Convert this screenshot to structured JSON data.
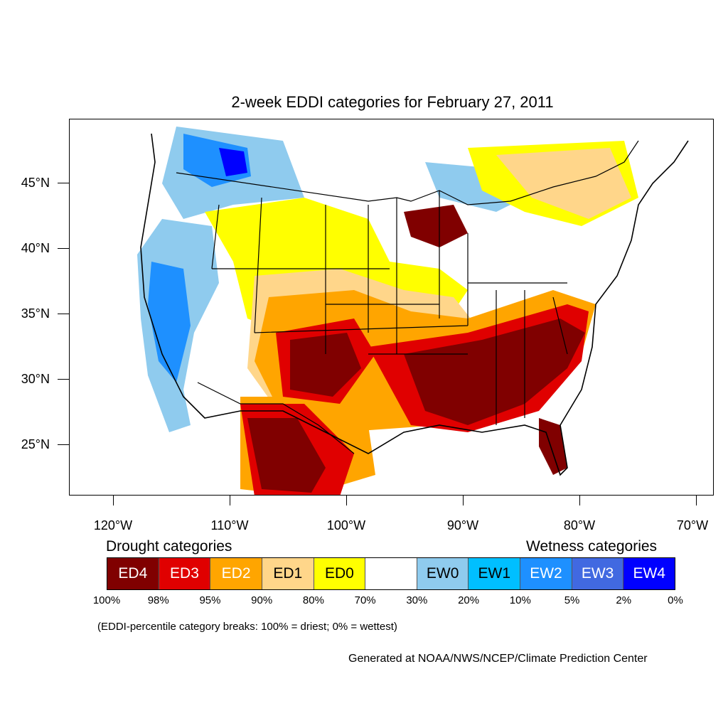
{
  "title": "2-week EDDI categories for February 27, 2011",
  "y_axis_labels": [
    "45°N",
    "40°N",
    "35°N",
    "30°N",
    "25°N"
  ],
  "x_axis_labels": [
    "120°W",
    "110°W",
    "100°W",
    "90°W",
    "80°W",
    "70°W"
  ],
  "legend": {
    "drought_heading": "Drought categories",
    "wetness_heading": "Wetness categories",
    "categories": [
      {
        "label": "ED4",
        "color": "#800000",
        "text_color": "#ffffff"
      },
      {
        "label": "ED3",
        "color": "#e00000",
        "text_color": "#ffffff"
      },
      {
        "label": "ED2",
        "color": "#ffa500",
        "text_color": "#ffffff"
      },
      {
        "label": "ED1",
        "color": "#ffd68a",
        "text_color": "#000000"
      },
      {
        "label": "ED0",
        "color": "#ffff00",
        "text_color": "#000000"
      },
      {
        "label": "",
        "color": "#ffffff",
        "text_color": "#000000"
      },
      {
        "label": "EW0",
        "color": "#8fcbee",
        "text_color": "#000000"
      },
      {
        "label": "EW1",
        "color": "#00bfff",
        "text_color": "#000000"
      },
      {
        "label": "EW2",
        "color": "#1e90ff",
        "text_color": "#ffffff"
      },
      {
        "label": "EW3",
        "color": "#4169e1",
        "text_color": "#ffffff"
      },
      {
        "label": "EW4",
        "color": "#0000ff",
        "text_color": "#ffffff"
      }
    ],
    "percentiles": [
      "100%",
      "98%",
      "95%",
      "90%",
      "80%",
      "70%",
      "30%",
      "20%",
      "10%",
      "5%",
      "2%",
      "0%"
    ]
  },
  "note": "(EDDI-percentile category breaks: 100% = driest; 0% = wettest)",
  "credit": "Generated at NOAA/NWS/NCEP/Climate Prediction Center"
}
